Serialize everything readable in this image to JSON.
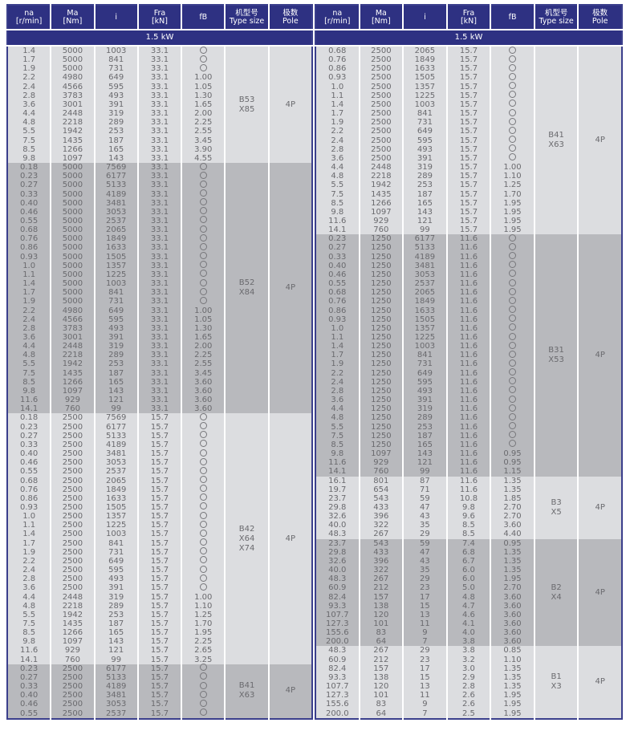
{
  "headers": {
    "na": [
      "na",
      "[r/min]"
    ],
    "ma": [
      "Ma",
      "[Nm]"
    ],
    "i": [
      "i"
    ],
    "fra": [
      "Fra",
      "[kN]"
    ],
    "fb": [
      "fB"
    ],
    "type": [
      "机型号",
      "Type size"
    ],
    "pole": [
      "极数",
      "Pole"
    ]
  },
  "power_label": "1.5  kW",
  "fb_symbol": "○",
  "colors": {
    "header": "#2e3182",
    "light_row": "#dcdde0",
    "dark_row": "#b8b9bd",
    "text": "#6a6a6e"
  },
  "left": [
    {
      "type_size": [
        "B53",
        "X85"
      ],
      "pole": "4P",
      "shade": "light",
      "rows": [
        [
          "1.4",
          "5000",
          "1003",
          "33.1",
          "○"
        ],
        [
          "1.7",
          "5000",
          "841",
          "33.1",
          "○"
        ],
        [
          "1.9",
          "5000",
          "731",
          "33.1",
          "○"
        ],
        [
          "2.2",
          "4980",
          "649",
          "33.1",
          "1.00"
        ],
        [
          "2.4",
          "4566",
          "595",
          "33.1",
          "1.05"
        ],
        [
          "2.8",
          "3783",
          "493",
          "33.1",
          "1.30"
        ],
        [
          "3.6",
          "3001",
          "391",
          "33.1",
          "1.65"
        ],
        [
          "4.4",
          "2448",
          "319",
          "33.1",
          "2.00"
        ],
        [
          "4.8",
          "2218",
          "289",
          "33.1",
          "2.25"
        ],
        [
          "5.5",
          "1942",
          "253",
          "33.1",
          "2.55"
        ],
        [
          "7.5",
          "1435",
          "187",
          "33.1",
          "3.45"
        ],
        [
          "8.5",
          "1266",
          "165",
          "33.1",
          "3.90"
        ],
        [
          "9.8",
          "1097",
          "143",
          "33.1",
          "4.55"
        ]
      ]
    },
    {
      "type_size": [
        "B52",
        "X84"
      ],
      "pole": "4P",
      "shade": "dark",
      "rows": [
        [
          "0.18",
          "5000",
          "7569",
          "33.1",
          "○"
        ],
        [
          "0.23",
          "5000",
          "6177",
          "33.1",
          "○"
        ],
        [
          "0.27",
          "5000",
          "5133",
          "33.1",
          "○"
        ],
        [
          "0.33",
          "5000",
          "4189",
          "33.1",
          "○"
        ],
        [
          "0.40",
          "5000",
          "3481",
          "33.1",
          "○"
        ],
        [
          "0.46",
          "5000",
          "3053",
          "33.1",
          "○"
        ],
        [
          "0.55",
          "5000",
          "2537",
          "33.1",
          "○"
        ],
        [
          "0.68",
          "5000",
          "2065",
          "33.1",
          "○"
        ],
        [
          "0.76",
          "5000",
          "1849",
          "33.1",
          "○"
        ],
        [
          "0.86",
          "5000",
          "1633",
          "33.1",
          "○"
        ],
        [
          "0.93",
          "5000",
          "1505",
          "33.1",
          "○"
        ],
        [
          "1.0",
          "5000",
          "1357",
          "33.1",
          "○"
        ],
        [
          "1.1",
          "5000",
          "1225",
          "33.1",
          "○"
        ],
        [
          "1.4",
          "5000",
          "1003",
          "33.1",
          "○"
        ],
        [
          "1.7",
          "5000",
          "841",
          "33.1",
          "○"
        ],
        [
          "1.9",
          "5000",
          "731",
          "33.1",
          "○"
        ],
        [
          "2.2",
          "4980",
          "649",
          "33.1",
          "1.00"
        ],
        [
          "2.4",
          "4566",
          "595",
          "33.1",
          "1.05"
        ],
        [
          "2.8",
          "3783",
          "493",
          "33.1",
          "1.30"
        ],
        [
          "3.6",
          "3001",
          "391",
          "33.1",
          "1.65"
        ],
        [
          "4.4",
          "2448",
          "319",
          "33.1",
          "2.00"
        ],
        [
          "4.8",
          "2218",
          "289",
          "33.1",
          "2.25"
        ],
        [
          "5.5",
          "1942",
          "253",
          "33.1",
          "2.55"
        ],
        [
          "7.5",
          "1435",
          "187",
          "33.1",
          "3.45"
        ],
        [
          "8.5",
          "1266",
          "165",
          "33.1",
          "3.60"
        ],
        [
          "9.8",
          "1097",
          "143",
          "33.1",
          "3.60"
        ],
        [
          "11.6",
          "929",
          "121",
          "33.1",
          "3.60"
        ],
        [
          "14.1",
          "760",
          "99",
          "33.1",
          "3.60"
        ]
      ]
    },
    {
      "type_size": [
        "B42",
        "X64",
        "X74"
      ],
      "pole": "4P",
      "shade": "light",
      "rows": [
        [
          "0.18",
          "2500",
          "7569",
          "15.7",
          "○"
        ],
        [
          "0.23",
          "2500",
          "6177",
          "15.7",
          "○"
        ],
        [
          "0.27",
          "2500",
          "5133",
          "15.7",
          "○"
        ],
        [
          "0.33",
          "2500",
          "4189",
          "15.7",
          "○"
        ],
        [
          "0.40",
          "2500",
          "3481",
          "15.7",
          "○"
        ],
        [
          "0.46",
          "2500",
          "3053",
          "15.7",
          "○"
        ],
        [
          "0.55",
          "2500",
          "2537",
          "15.7",
          "○"
        ],
        [
          "0.68",
          "2500",
          "2065",
          "15.7",
          "○"
        ],
        [
          "0.76",
          "2500",
          "1849",
          "15.7",
          "○"
        ],
        [
          "0.86",
          "2500",
          "1633",
          "15.7",
          "○"
        ],
        [
          "0.93",
          "2500",
          "1505",
          "15.7",
          "○"
        ],
        [
          "1.0",
          "2500",
          "1357",
          "15.7",
          "○"
        ],
        [
          "1.1",
          "2500",
          "1225",
          "15.7",
          "○"
        ],
        [
          "1.4",
          "2500",
          "1003",
          "15.7",
          "○"
        ],
        [
          "1.7",
          "2500",
          "841",
          "15.7",
          "○"
        ],
        [
          "1.9",
          "2500",
          "731",
          "15.7",
          "○"
        ],
        [
          "2.2",
          "2500",
          "649",
          "15.7",
          "○"
        ],
        [
          "2.4",
          "2500",
          "595",
          "15.7",
          "○"
        ],
        [
          "2.8",
          "2500",
          "493",
          "15.7",
          "○"
        ],
        [
          "3.6",
          "2500",
          "391",
          "15.7",
          "○"
        ],
        [
          "4.4",
          "2448",
          "319",
          "15.7",
          "1.00"
        ],
        [
          "4.8",
          "2218",
          "289",
          "15.7",
          "1.10"
        ],
        [
          "5.5",
          "1942",
          "253",
          "15.7",
          "1.25"
        ],
        [
          "7.5",
          "1435",
          "187",
          "15.7",
          "1.70"
        ],
        [
          "8.5",
          "1266",
          "165",
          "15.7",
          "1.95"
        ],
        [
          "9.8",
          "1097",
          "143",
          "15.7",
          "2.25"
        ],
        [
          "11.6",
          "929",
          "121",
          "15.7",
          "2.65"
        ],
        [
          "14.1",
          "760",
          "99",
          "15.7",
          "3.25"
        ]
      ]
    },
    {
      "type_size": [
        "B41",
        "X63"
      ],
      "pole": "4P",
      "shade": "dark",
      "rows": [
        [
          "0.23",
          "2500",
          "6177",
          "15.7",
          "○"
        ],
        [
          "0.27",
          "2500",
          "5133",
          "15.7",
          "○"
        ],
        [
          "0.33",
          "2500",
          "4189",
          "15.7",
          "○"
        ],
        [
          "0.40",
          "2500",
          "3481",
          "15.7",
          "○"
        ],
        [
          "0.46",
          "2500",
          "3053",
          "15.7",
          "○"
        ],
        [
          "0.55",
          "2500",
          "2537",
          "15.7",
          "○"
        ]
      ]
    }
  ],
  "right": [
    {
      "type_size": [
        "B41",
        "X63"
      ],
      "pole": "4P",
      "shade": "light",
      "rows": [
        [
          "0.68",
          "2500",
          "2065",
          "15.7",
          "○"
        ],
        [
          "0.76",
          "2500",
          "1849",
          "15.7",
          "○"
        ],
        [
          "0.86",
          "2500",
          "1633",
          "15.7",
          "○"
        ],
        [
          "0.93",
          "2500",
          "1505",
          "15.7",
          "○"
        ],
        [
          "1.0",
          "2500",
          "1357",
          "15.7",
          "○"
        ],
        [
          "1.1",
          "2500",
          "1225",
          "15.7",
          "○"
        ],
        [
          "1.4",
          "2500",
          "1003",
          "15.7",
          "○"
        ],
        [
          "1.7",
          "2500",
          "841",
          "15.7",
          "○"
        ],
        [
          "1.9",
          "2500",
          "731",
          "15.7",
          "○"
        ],
        [
          "2.2",
          "2500",
          "649",
          "15.7",
          "○"
        ],
        [
          "2.4",
          "2500",
          "595",
          "15.7",
          "○"
        ],
        [
          "2.8",
          "2500",
          "493",
          "15.7",
          "○"
        ],
        [
          "3.6",
          "2500",
          "391",
          "15.7",
          "○"
        ],
        [
          "4.4",
          "2448",
          "319",
          "15.7",
          "1.00"
        ],
        [
          "4.8",
          "2218",
          "289",
          "15.7",
          "1.10"
        ],
        [
          "5.5",
          "1942",
          "253",
          "15.7",
          "1.25"
        ],
        [
          "7.5",
          "1435",
          "187",
          "15.7",
          "1.70"
        ],
        [
          "8.5",
          "1266",
          "165",
          "15.7",
          "1.95"
        ],
        [
          "9.8",
          "1097",
          "143",
          "15.7",
          "1.95"
        ],
        [
          "11.6",
          "929",
          "121",
          "15.7",
          "1.95"
        ],
        [
          "14.1",
          "760",
          "99",
          "15.7",
          "1.95"
        ]
      ]
    },
    {
      "type_size": [
        "B31",
        "X53"
      ],
      "pole": "4P",
      "shade": "dark",
      "rows": [
        [
          "0.23",
          "1250",
          "6177",
          "11.6",
          "○"
        ],
        [
          "0.27",
          "1250",
          "5133",
          "11.6",
          "○"
        ],
        [
          "0.33",
          "1250",
          "4189",
          "11.6",
          "○"
        ],
        [
          "0.40",
          "1250",
          "3481",
          "11.6",
          "○"
        ],
        [
          "0.46",
          "1250",
          "3053",
          "11.6",
          "○"
        ],
        [
          "0.55",
          "1250",
          "2537",
          "11.6",
          "○"
        ],
        [
          "0.68",
          "1250",
          "2065",
          "11.6",
          "○"
        ],
        [
          "0.76",
          "1250",
          "1849",
          "11.6",
          "○"
        ],
        [
          "0.86",
          "1250",
          "1633",
          "11.6",
          "○"
        ],
        [
          "0.93",
          "1250",
          "1505",
          "11.6",
          "○"
        ],
        [
          "1.0",
          "1250",
          "1357",
          "11.6",
          "○"
        ],
        [
          "1.1",
          "1250",
          "1225",
          "11.6",
          "○"
        ],
        [
          "1.4",
          "1250",
          "1003",
          "11.6",
          "○"
        ],
        [
          "1.7",
          "1250",
          "841",
          "11.6",
          "○"
        ],
        [
          "1.9",
          "1250",
          "731",
          "11.6",
          "○"
        ],
        [
          "2.2",
          "1250",
          "649",
          "11.6",
          "○"
        ],
        [
          "2.4",
          "1250",
          "595",
          "11.6",
          "○"
        ],
        [
          "2.8",
          "1250",
          "493",
          "11.6",
          "○"
        ],
        [
          "3.6",
          "1250",
          "391",
          "11.6",
          "○"
        ],
        [
          "4.4",
          "1250",
          "319",
          "11.6",
          "○"
        ],
        [
          "4.8",
          "1250",
          "289",
          "11.6",
          "○"
        ],
        [
          "5.5",
          "1250",
          "253",
          "11.6",
          "○"
        ],
        [
          "7.5",
          "1250",
          "187",
          "11.6",
          "○"
        ],
        [
          "8.5",
          "1250",
          "165",
          "11.6",
          "○"
        ],
        [
          "9.8",
          "1097",
          "143",
          "11.6",
          "0.95"
        ],
        [
          "11.6",
          "929",
          "121",
          "11.6",
          "0.95"
        ],
        [
          "14.1",
          "760",
          "99",
          "11.6",
          "1.15"
        ]
      ]
    },
    {
      "type_size": [
        "B3",
        "X5"
      ],
      "pole": "4P",
      "shade": "light",
      "rows": [
        [
          "16.1",
          "801",
          "87",
          "11.6",
          "1.35"
        ],
        [
          "19.7",
          "654",
          "71",
          "11.6",
          "1.35"
        ],
        [
          "23.7",
          "543",
          "59",
          "10.8",
          "1.85"
        ],
        [
          "29.8",
          "433",
          "47",
          "9.8",
          "2.70"
        ],
        [
          "32.6",
          "396",
          "43",
          "9.6",
          "2.70"
        ],
        [
          "40.0",
          "322",
          "35",
          "8.5",
          "3.60"
        ],
        [
          "48.3",
          "267",
          "29",
          "8.5",
          "4.40"
        ]
      ]
    },
    {
      "type_size": [
        "B2",
        "X4"
      ],
      "pole": "4P",
      "shade": "dark",
      "rows": [
        [
          "23.7",
          "543",
          "59",
          "7.4",
          "0.95"
        ],
        [
          "29.8",
          "433",
          "47",
          "6.8",
          "1.35"
        ],
        [
          "32.6",
          "396",
          "43",
          "6.7",
          "1.35"
        ],
        [
          "40.0",
          "322",
          "35",
          "6.0",
          "1.35"
        ],
        [
          "48.3",
          "267",
          "29",
          "6.0",
          "1.95"
        ],
        [
          "60.9",
          "212",
          "23",
          "5.0",
          "2.70"
        ],
        [
          "82.4",
          "157",
          "17",
          "4.8",
          "3.60"
        ],
        [
          "93.3",
          "138",
          "15",
          "4.7",
          "3.60"
        ],
        [
          "107.7",
          "120",
          "13",
          "4.6",
          "3.60"
        ],
        [
          "127.3",
          "101",
          "11",
          "4.1",
          "3.60"
        ],
        [
          "155.6",
          "83",
          "9",
          "4.0",
          "3.60"
        ],
        [
          "200.0",
          "64",
          "7",
          "3.8",
          "3.60"
        ]
      ]
    },
    {
      "type_size": [
        "B1",
        "X3"
      ],
      "pole": "4P",
      "shade": "light",
      "rows": [
        [
          "48.3",
          "267",
          "29",
          "3.8",
          "0.85"
        ],
        [
          "60.9",
          "212",
          "23",
          "3.2",
          "1.10"
        ],
        [
          "82.4",
          "157",
          "17",
          "3.0",
          "1.35"
        ],
        [
          "93.3",
          "138",
          "15",
          "2.9",
          "1.35"
        ],
        [
          "107.7",
          "120",
          "13",
          "2.8",
          "1.35"
        ],
        [
          "127.3",
          "101",
          "11",
          "2.6",
          "1.95"
        ],
        [
          "155.6",
          "83",
          "9",
          "2.6",
          "1.95"
        ],
        [
          "200.0",
          "64",
          "7",
          "2.5",
          "1.95"
        ]
      ]
    }
  ]
}
